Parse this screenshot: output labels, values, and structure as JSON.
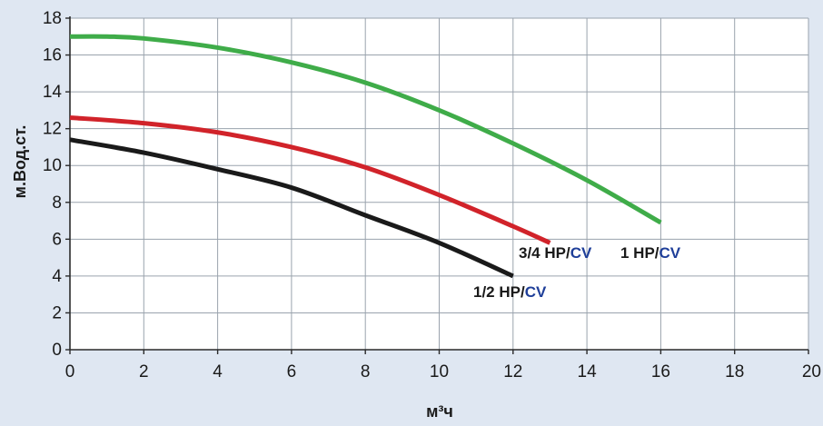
{
  "chart_data": {
    "type": "line",
    "xlabel": "м³ч",
    "ylabel": "м.Вод.ст.",
    "xlim": [
      0,
      20
    ],
    "ylim": [
      0,
      18
    ],
    "xticks": [
      0,
      2,
      4,
      6,
      8,
      10,
      12,
      14,
      16,
      18,
      20
    ],
    "yticks": [
      0,
      2,
      4,
      6,
      8,
      10,
      12,
      14,
      16,
      18
    ],
    "grid": true,
    "legend": "none",
    "series": [
      {
        "name_main": "1 HP/",
        "name_suffix": "CV",
        "color": "#3fac49",
        "x": [
          0,
          1,
          2,
          4,
          6,
          8,
          10,
          12,
          14,
          16
        ],
        "y": [
          17.0,
          17.0,
          16.9,
          16.4,
          15.6,
          14.5,
          13.0,
          11.2,
          9.2,
          6.9
        ]
      },
      {
        "name_main": "3/4 HP/",
        "name_suffix": "CV",
        "color": "#d1232a",
        "x": [
          0,
          2,
          4,
          6,
          8,
          10,
          12,
          13
        ],
        "y": [
          12.6,
          12.3,
          11.8,
          11.0,
          9.9,
          8.4,
          6.7,
          5.8
        ]
      },
      {
        "name_main": "1/2 HP/",
        "name_suffix": "CV",
        "color": "#1a1a1a",
        "x": [
          0,
          2,
          4,
          6,
          8,
          10,
          12
        ],
        "y": [
          11.4,
          10.7,
          9.8,
          8.8,
          7.3,
          5.8,
          4.0
        ]
      }
    ],
    "label_colors": {
      "main": "#1a1a1a",
      "suffix": "#1f3f99"
    }
  }
}
